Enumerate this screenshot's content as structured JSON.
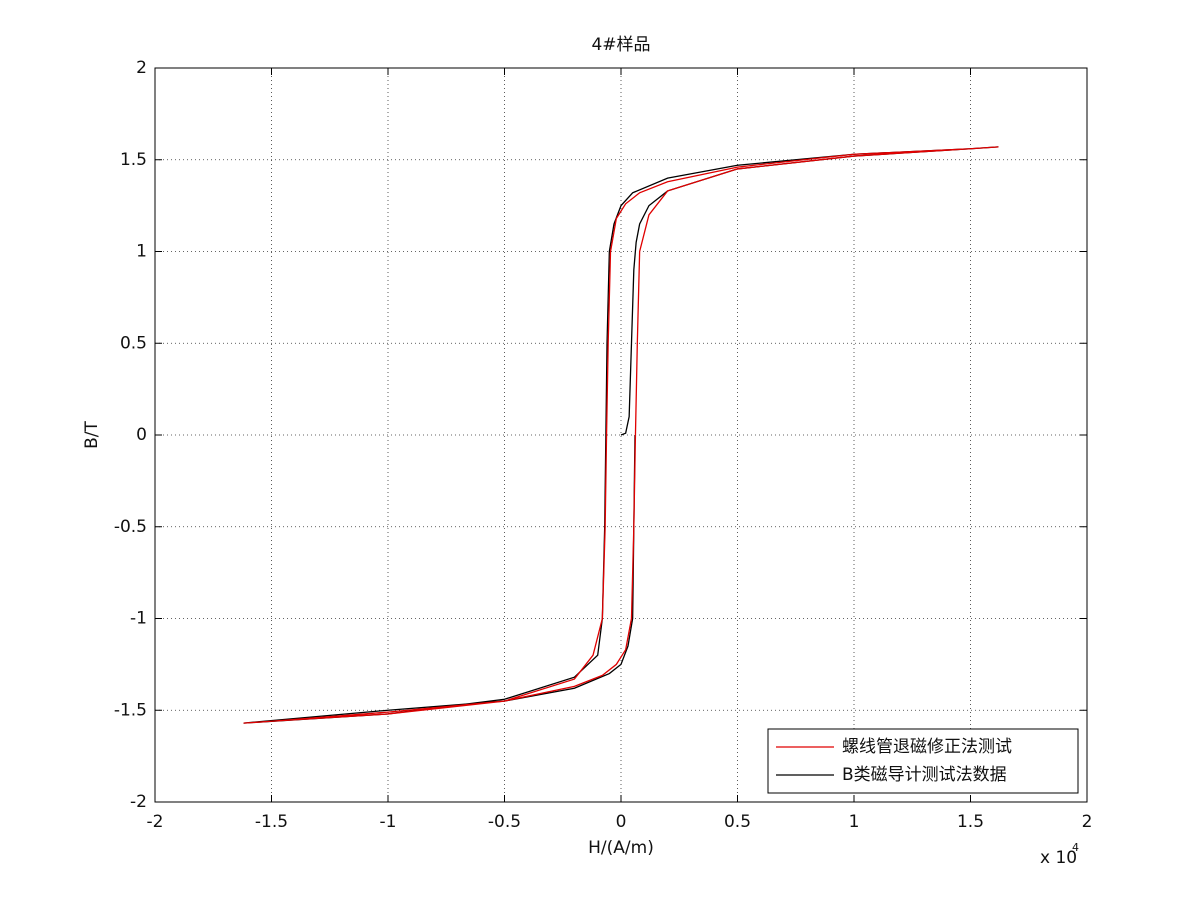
{
  "chart_data": {
    "type": "line",
    "title": "4#样品",
    "x_label": "H/(A/m)",
    "y_label": "B/T",
    "x_scale_label": "x 10",
    "x_scale_exponent": "4",
    "xlim": [
      -2,
      2
    ],
    "xticks": [
      -2,
      -1.5,
      -1,
      -0.5,
      0,
      0.5,
      1,
      1.5,
      2
    ],
    "ylim": [
      -2,
      2
    ],
    "yticks": [
      -2,
      -1.5,
      -1,
      -0.5,
      0,
      0.5,
      1,
      1.5,
      2
    ],
    "grid": true,
    "legend": "lower right",
    "series": [
      {
        "name": "螺线管退磁修正法测试",
        "color": "#e00000",
        "x": [
          1.62,
          1.5,
          1,
          0.5,
          0.2,
          0.08,
          0.02,
          -0.02,
          -0.045,
          -0.055,
          -0.062,
          -0.068,
          -0.08,
          -0.12,
          -0.2,
          -0.5,
          -1,
          -1.5,
          -1.62,
          -1.5,
          -1,
          -0.5,
          -0.2,
          -0.08,
          -0.02,
          0.02,
          0.045,
          0.055,
          0.062,
          0.07,
          0.08,
          0.12,
          0.2,
          0.5,
          1,
          1.5,
          1.62
        ],
        "values": [
          1.57,
          1.56,
          1.53,
          1.46,
          1.38,
          1.32,
          1.26,
          1.18,
          1.0,
          0.5,
          0,
          -0.5,
          -1.0,
          -1.2,
          -1.33,
          -1.45,
          -1.52,
          -1.56,
          -1.57,
          -1.56,
          -1.51,
          -1.45,
          -1.37,
          -1.31,
          -1.25,
          -1.17,
          -1.0,
          -0.5,
          0,
          0.5,
          1.0,
          1.2,
          1.33,
          1.45,
          1.52,
          1.56,
          1.57
        ]
      },
      {
        "name": "B类磁导计测试法数据",
        "color": "#000000",
        "x": [
          0,
          0.02,
          0.035,
          0.045,
          0.055,
          0.065,
          0.08,
          0.12,
          0.2,
          0.5,
          1,
          1.5,
          1.62,
          1.5,
          1,
          0.5,
          0.2,
          0.05,
          0,
          -0.03,
          -0.05,
          -0.06,
          -0.065,
          -0.07,
          -0.08,
          -0.1,
          -0.2,
          -0.5,
          -1,
          -1.62,
          -1,
          -0.5,
          -0.2,
          -0.05,
          0,
          0.03,
          0.05,
          0.055,
          0.06
        ],
        "values": [
          0,
          0.01,
          0.1,
          0.5,
          0.9,
          1.05,
          1.15,
          1.25,
          1.33,
          1.45,
          1.52,
          1.56,
          1.57,
          1.56,
          1.53,
          1.47,
          1.4,
          1.32,
          1.25,
          1.15,
          1.0,
          0.5,
          0,
          -0.5,
          -1.0,
          -1.2,
          -1.32,
          -1.44,
          -1.52,
          -1.57,
          -1.5,
          -1.45,
          -1.38,
          -1.3,
          -1.25,
          -1.15,
          -1.0,
          -0.5,
          0
        ]
      }
    ]
  }
}
